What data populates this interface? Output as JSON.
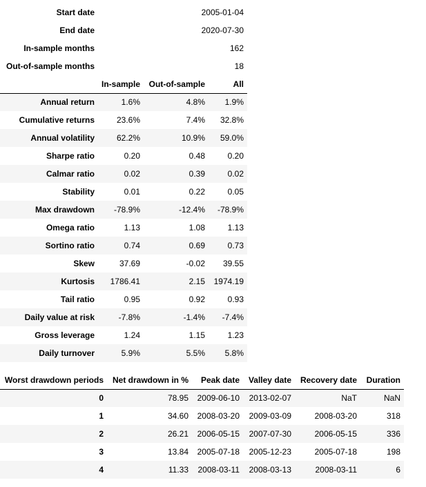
{
  "info": {
    "rows": [
      [
        "Start date",
        "2005-01-04"
      ],
      [
        "End date",
        "2020-07-30"
      ],
      [
        "In-sample months",
        "162"
      ],
      [
        "Out-of-sample months",
        "18"
      ]
    ]
  },
  "stats": {
    "columns": [
      "In-sample",
      "Out-of-sample",
      "All"
    ],
    "rows": [
      [
        "Annual return",
        "1.6%",
        "4.8%",
        "1.9%"
      ],
      [
        "Cumulative returns",
        "23.6%",
        "7.4%",
        "32.8%"
      ],
      [
        "Annual volatility",
        "62.2%",
        "10.9%",
        "59.0%"
      ],
      [
        "Sharpe ratio",
        "0.20",
        "0.48",
        "0.20"
      ],
      [
        "Calmar ratio",
        "0.02",
        "0.39",
        "0.02"
      ],
      [
        "Stability",
        "0.01",
        "0.22",
        "0.05"
      ],
      [
        "Max drawdown",
        "-78.9%",
        "-12.4%",
        "-78.9%"
      ],
      [
        "Omega ratio",
        "1.13",
        "1.08",
        "1.13"
      ],
      [
        "Sortino ratio",
        "0.74",
        "0.69",
        "0.73"
      ],
      [
        "Skew",
        "37.69",
        "-0.02",
        "39.55"
      ],
      [
        "Kurtosis",
        "1786.41",
        "2.15",
        "1974.19"
      ],
      [
        "Tail ratio",
        "0.95",
        "0.92",
        "0.93"
      ],
      [
        "Daily value at risk",
        "-7.8%",
        "-1.4%",
        "-7.4%"
      ],
      [
        "Gross leverage",
        "1.24",
        "1.15",
        "1.23"
      ],
      [
        "Daily turnover",
        "5.9%",
        "5.5%",
        "5.8%"
      ]
    ]
  },
  "drawdowns": {
    "columns": [
      "Worst drawdown periods",
      "Net drawdown in %",
      "Peak date",
      "Valley date",
      "Recovery date",
      "Duration"
    ],
    "rows": [
      [
        "0",
        "78.95",
        "2009-06-10",
        "2013-02-07",
        "NaT",
        "NaN"
      ],
      [
        "1",
        "34.60",
        "2008-03-20",
        "2009-03-09",
        "2008-03-20",
        "318"
      ],
      [
        "2",
        "26.21",
        "2006-05-15",
        "2007-07-30",
        "2006-05-15",
        "336"
      ],
      [
        "3",
        "13.84",
        "2005-07-18",
        "2005-12-23",
        "2005-07-18",
        "198"
      ],
      [
        "4",
        "11.33",
        "2008-03-11",
        "2008-03-13",
        "2008-03-11",
        "6"
      ]
    ]
  }
}
